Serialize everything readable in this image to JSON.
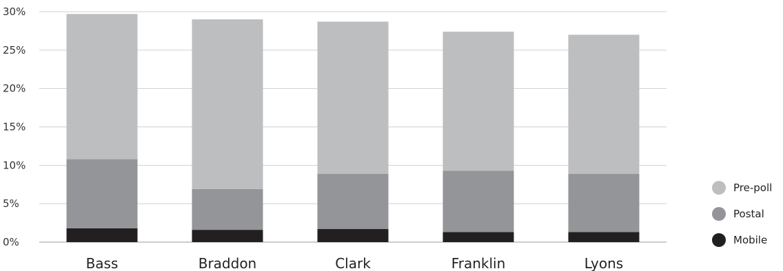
{
  "chart_data": {
    "type": "bar",
    "stacked": true,
    "categories": [
      "Bass",
      "Braddon",
      "Clark",
      "Franklin",
      "Lyons"
    ],
    "series": [
      {
        "name": "Mobile",
        "color": "#231f20",
        "values": [
          1.8,
          1.6,
          1.7,
          1.3,
          1.3
        ]
      },
      {
        "name": "Postal",
        "color": "#939598",
        "values": [
          9.0,
          5.3,
          7.2,
          8.0,
          7.6
        ]
      },
      {
        "name": "Pre-poll",
        "color": "#bcbec0",
        "values": [
          18.9,
          22.1,
          19.8,
          18.1,
          18.1
        ]
      }
    ],
    "yticks": [
      "0%",
      "5%",
      "10%",
      "15%",
      "20%",
      "25%",
      "30%"
    ],
    "ylim": [
      0,
      30
    ],
    "grid": true,
    "legend_position": "right-bottom",
    "legend_order": [
      "Pre-poll",
      "Postal",
      "Mobile"
    ]
  }
}
